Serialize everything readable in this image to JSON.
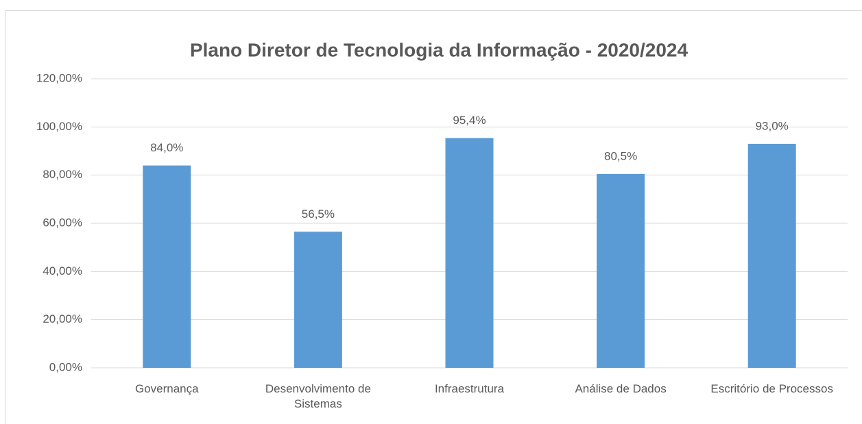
{
  "chart_data": {
    "type": "bar",
    "title": "Plano Diretor de Tecnologia da Informação - 2020/2024",
    "categories": [
      "Governança",
      "Desenvolvimento de Sistemas",
      "Infraestrutura",
      "Análise de Dados",
      "Escritório de Processos"
    ],
    "values": [
      84.0,
      56.5,
      95.4,
      80.5,
      93.0
    ],
    "value_labels": [
      "84,0%",
      "56,5%",
      "95,4%",
      "80,5%",
      "93,0%"
    ],
    "color": "#5b9bd5",
    "ylim": [
      0,
      120
    ],
    "yticks": [
      {
        "value": 0,
        "label": "0,00%"
      },
      {
        "value": 20,
        "label": "20,00%"
      },
      {
        "value": 40,
        "label": "40,00%"
      },
      {
        "value": 60,
        "label": "60,00%"
      },
      {
        "value": 80,
        "label": "80,00%"
      },
      {
        "value": 100,
        "label": "100,00%"
      },
      {
        "value": 120,
        "label": "120,00%"
      }
    ],
    "grid": true
  }
}
